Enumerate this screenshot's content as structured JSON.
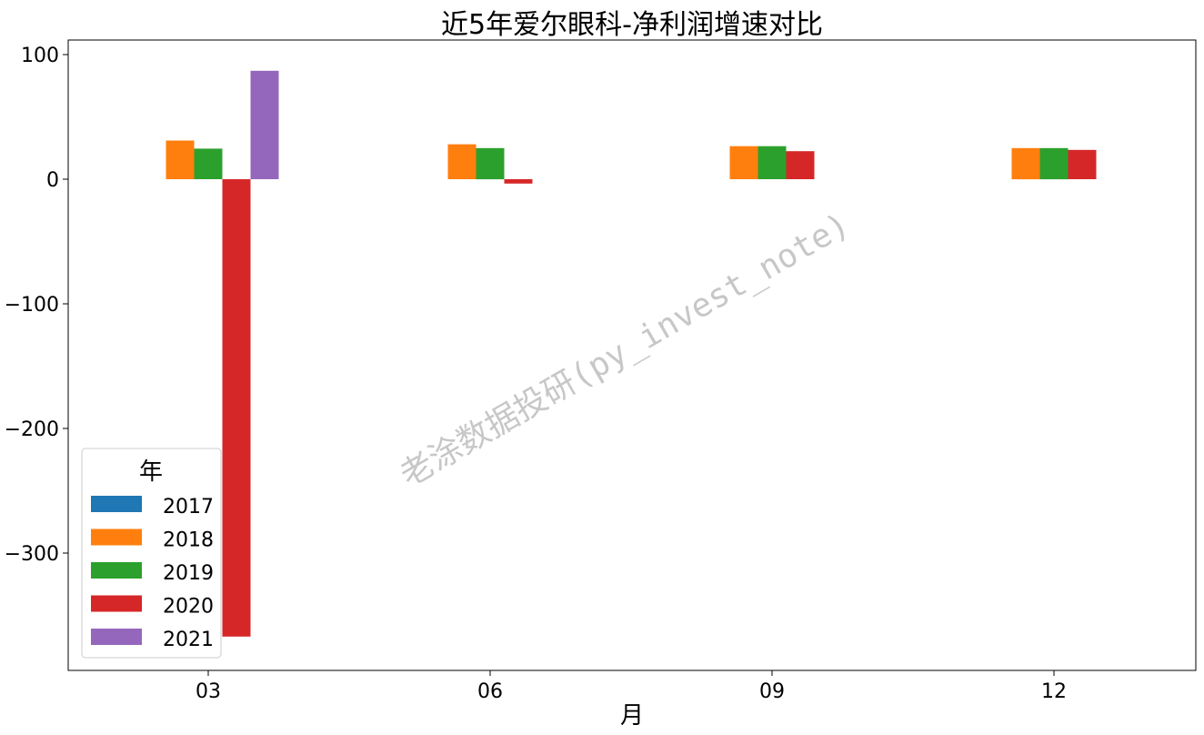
{
  "chart_data": {
    "type": "bar",
    "title": "近5年爱尔眼科-净利润增速对比",
    "xlabel": "月",
    "ylabel": "",
    "categories": [
      "03",
      "06",
      "09",
      "12"
    ],
    "ylim": [
      -390,
      110
    ],
    "yticks": [
      100,
      0,
      -100,
      -200,
      -300
    ],
    "yticklabels": [
      "100",
      "0",
      "−100",
      "−200",
      "−300"
    ],
    "grid": false,
    "legend": {
      "title": "年",
      "position": "lower-left"
    },
    "series": [
      {
        "name": "2017",
        "color": "#1f77b4",
        "values": [
          0,
          0,
          0,
          0
        ]
      },
      {
        "name": "2018",
        "color": "#ff7f0e",
        "values": [
          31,
          28,
          26.5,
          25
        ]
      },
      {
        "name": "2019",
        "color": "#2ca02c",
        "values": [
          24.5,
          25,
          26.5,
          25
        ]
      },
      {
        "name": "2020",
        "color": "#d62728",
        "values": [
          -367,
          -3.5,
          22.5,
          23.5
        ]
      },
      {
        "name": "2021",
        "color": "#9467bd",
        "values": [
          87,
          null,
          null,
          null
        ]
      }
    ],
    "watermark": "老涂数据投研(py_invest_note)"
  }
}
